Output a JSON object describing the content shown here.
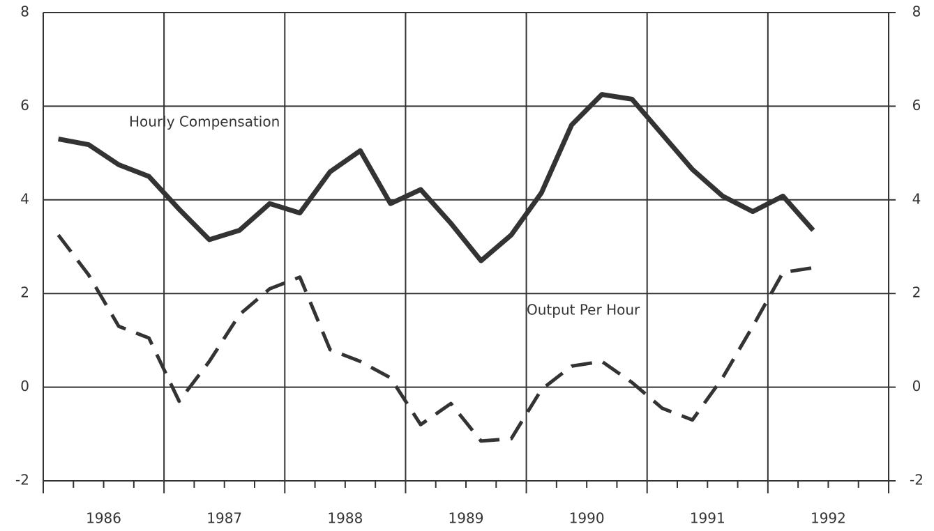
{
  "chart_data": {
    "type": "line",
    "annotations": [
      "Hourly Compensation",
      "Output Per Hour"
    ],
    "x": [
      1986.125,
      1986.375,
      1986.625,
      1986.875,
      1987.125,
      1987.375,
      1987.625,
      1987.875,
      1988.125,
      1988.375,
      1988.625,
      1988.875,
      1989.125,
      1989.375,
      1989.625,
      1989.875,
      1990.125,
      1990.375,
      1990.625,
      1990.875,
      1991.125,
      1991.375,
      1991.625,
      1991.875,
      1992.125,
      1992.375
    ],
    "series": [
      {
        "name": "Hourly Compensation",
        "color": "#333333",
        "dash": false,
        "values": [
          5.3,
          5.18,
          4.75,
          4.5,
          3.8,
          3.15,
          3.35,
          3.92,
          3.72,
          4.6,
          5.05,
          3.92,
          4.22,
          3.5,
          2.7,
          3.25,
          4.15,
          5.6,
          6.25,
          6.15,
          5.4,
          4.65,
          4.08,
          3.75,
          4.08,
          3.35
        ]
      },
      {
        "name": "Output Per Hour",
        "color": "#333333",
        "dash": true,
        "values": [
          3.25,
          2.4,
          1.3,
          1.05,
          -0.3,
          0.55,
          1.55,
          2.1,
          2.35,
          0.8,
          0.55,
          0.2,
          -0.8,
          -0.35,
          -1.15,
          -1.1,
          -0.05,
          0.45,
          0.55,
          0.1,
          -0.45,
          -0.7,
          0.2,
          1.3,
          2.45,
          2.55
        ]
      }
    ],
    "xlim": [
      1986,
      1993
    ],
    "xticks": [
      {
        "value": 1986.5,
        "label": "1986"
      },
      {
        "value": 1987.5,
        "label": "1987"
      },
      {
        "value": 1988.5,
        "label": "1988"
      },
      {
        "value": 1989.5,
        "label": "1989"
      },
      {
        "value": 1990.5,
        "label": "1990"
      },
      {
        "value": 1991.5,
        "label": "1991"
      },
      {
        "value": 1992.5,
        "label": "1992"
      }
    ],
    "xgrid": [
      1986,
      1987,
      1988,
      1989,
      1990,
      1991,
      1992,
      1993
    ],
    "ylim": [
      -2,
      8
    ],
    "yticks": [
      -2,
      0,
      2,
      4,
      6,
      8
    ],
    "y2lim": [
      -2,
      8
    ],
    "y2ticks": [
      -2,
      0,
      2,
      4,
      6,
      8
    ],
    "grid": true
  }
}
